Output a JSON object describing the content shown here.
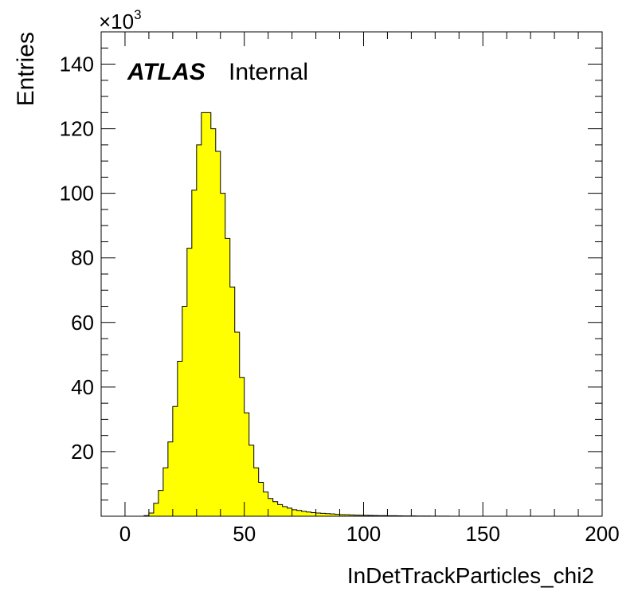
{
  "chart_data": {
    "type": "bar",
    "subtype": "histogram",
    "xlabel": "InDetTrackParticles_chi2",
    "ylabel": "Entries",
    "y_multiplier_label": "×10",
    "y_multiplier_exp": "3",
    "experiment_label": "ATLAS",
    "status_label": "Internal",
    "xlim": [
      -10,
      200
    ],
    "ylim": [
      0,
      150
    ],
    "x_ticks": [
      0,
      50,
      100,
      150,
      200
    ],
    "x_tick_labels": [
      "0",
      "50",
      "100",
      "150",
      "200"
    ],
    "y_ticks": [
      20,
      40,
      60,
      80,
      100,
      120,
      140
    ],
    "y_tick_labels": [
      "20",
      "40",
      "60",
      "80",
      "100",
      "120",
      "140"
    ],
    "bin_width": 2,
    "bin_start": 0,
    "values": [
      0,
      0,
      0,
      0,
      0.2,
      1,
      4,
      8,
      15,
      23,
      34,
      48,
      65,
      83,
      101,
      115,
      125,
      125,
      120,
      113,
      100,
      86,
      71,
      57,
      43,
      32,
      22,
      15,
      10.5,
      7.5,
      5.5,
      4.5,
      3.6,
      3,
      2.5,
      2,
      1.8,
      1.5,
      1.3,
      1.1,
      1,
      0.9,
      0.8,
      0.7,
      0.6,
      0.5,
      0.45,
      0.4,
      0.35,
      0.3,
      0.27,
      0.24,
      0.22,
      0.2,
      0.18,
      0.16,
      0.14,
      0.12,
      0.1,
      0.09,
      0.08,
      0.07,
      0.06,
      0.05,
      0.04,
      0.03,
      0.02,
      0.02,
      0.01,
      0.01,
      0,
      0,
      0,
      0,
      0,
      0,
      0,
      0,
      0,
      0,
      0,
      0,
      0,
      0,
      0,
      0,
      0,
      0,
      0,
      0,
      0,
      0,
      0,
      0,
      0,
      0,
      0,
      0,
      0,
      0
    ],
    "fill_color": "#ffff00",
    "line_color": "#000000",
    "legend": "none",
    "grid": false
  }
}
